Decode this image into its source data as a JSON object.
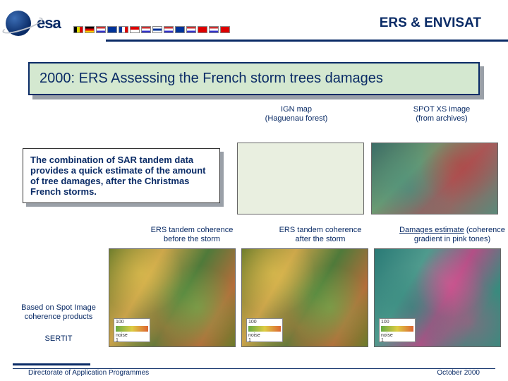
{
  "header": {
    "org": "esa",
    "title": "ERS & ENVISAT",
    "accent_color": "#0a2b66"
  },
  "title_box": "2000: ERS Assessing the French storm trees damages",
  "labels_top": {
    "left_spacer": "",
    "ign": "IGN map\n(Haguenau forest)",
    "spot": "SPOT XS image\n(from archives)"
  },
  "description": "The combination of SAR tandem data provides a quick estimate of the amount of tree damages, after the Christmas French storms.",
  "labels_mid": {
    "blank": "",
    "before": "ERS tandem coherence\nbefore the storm",
    "after": "ERS tandem coherence\nafter the storm",
    "damages_a": "Damages estimate",
    "damages_b": " (coherence gradient in pink tones)"
  },
  "left_notes": {
    "n1": "Based on Spot Image\ncoherence products",
    "n2": "SERTIT"
  },
  "colorbar": {
    "hi": "100",
    "mid": "noise",
    "lo": "1"
  },
  "footer": {
    "left": "Directorate of Application Programmes",
    "right": "October 2000"
  },
  "colors": {
    "title_fill": "#d4e8d0",
    "shadow": "#9aa0a8",
    "text": "#0a2b66"
  }
}
